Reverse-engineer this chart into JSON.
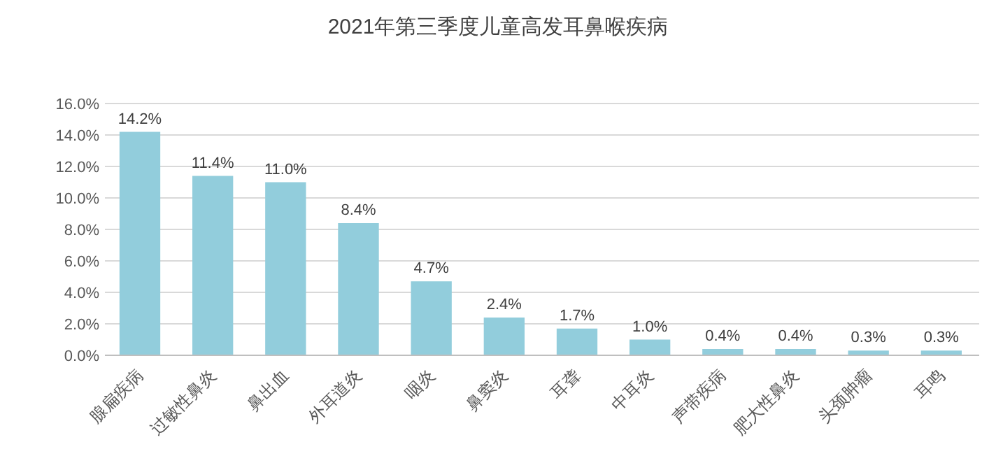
{
  "chart_data": {
    "type": "bar",
    "title": "2021年第三季度儿童高发耳鼻喉疾病",
    "categories": [
      "腺扁疾病",
      "过敏性鼻炎",
      "鼻出血",
      "外耳道炎",
      "咽炎",
      "鼻窦炎",
      "耳聋",
      "中耳炎",
      "声带疾病",
      "肥大性鼻炎",
      "头颈肿瘤",
      "耳鸣"
    ],
    "values": [
      14.2,
      11.4,
      11.0,
      8.4,
      4.7,
      2.4,
      1.7,
      1.0,
      0.4,
      0.4,
      0.3,
      0.3
    ],
    "value_labels": [
      "14.2%",
      "11.4%",
      "11.0%",
      "8.4%",
      "4.7%",
      "2.4%",
      "1.7%",
      "1.0%",
      "0.4%",
      "0.4%",
      "0.3%",
      "0.3%"
    ],
    "color": "#92cddc",
    "ylim": [
      0,
      16
    ],
    "yticks": [
      {
        "value": 0,
        "label": "0.0%"
      },
      {
        "value": 2,
        "label": "2.0%"
      },
      {
        "value": 4,
        "label": "4.0%"
      },
      {
        "value": 6,
        "label": "6.0%"
      },
      {
        "value": 8,
        "label": "8.0%"
      },
      {
        "value": 10,
        "label": "10.0%"
      },
      {
        "value": 12,
        "label": "12.0%"
      },
      {
        "value": 14,
        "label": "14.0%"
      },
      {
        "value": 16,
        "label": "16.0%"
      }
    ],
    "grid": "y"
  }
}
